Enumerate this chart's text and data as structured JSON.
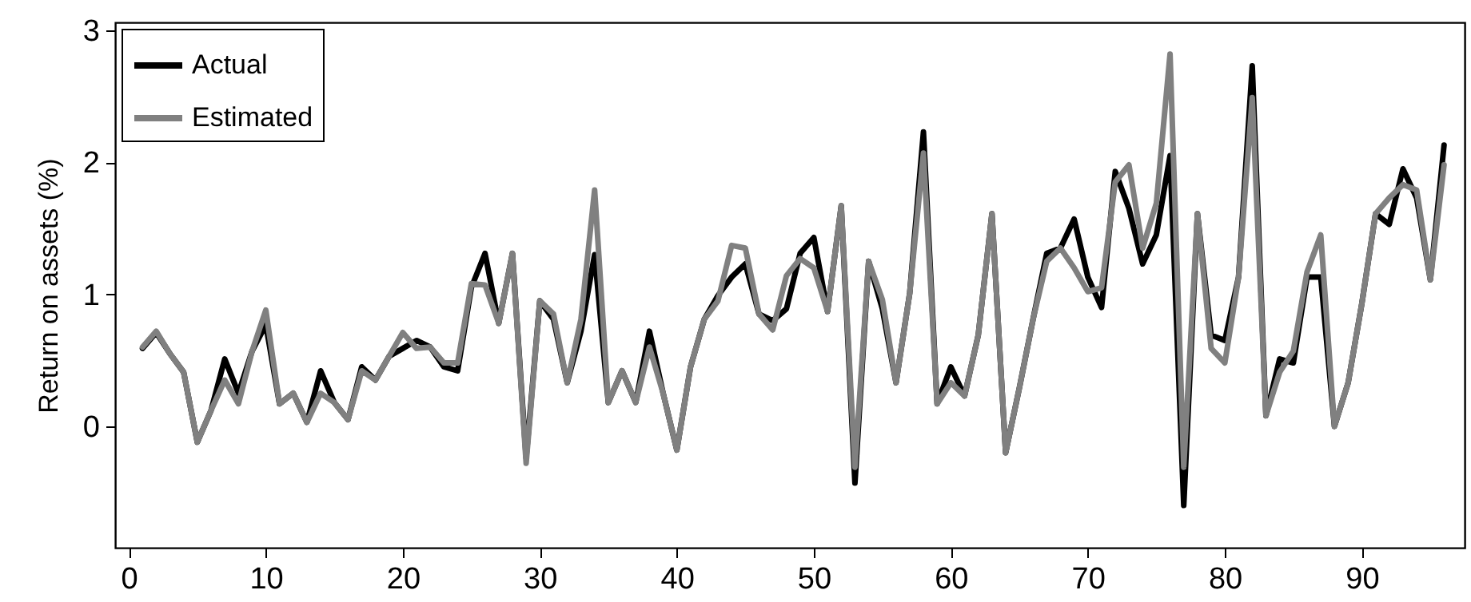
{
  "chart_data": {
    "type": "line",
    "ylabel": "Return on assets (%)",
    "x": [
      1,
      2,
      3,
      4,
      5,
      6,
      7,
      8,
      9,
      10,
      11,
      12,
      13,
      14,
      15,
      16,
      17,
      18,
      19,
      20,
      21,
      22,
      23,
      24,
      25,
      26,
      27,
      28,
      29,
      30,
      31,
      32,
      33,
      34,
      35,
      36,
      37,
      38,
      39,
      40,
      41,
      42,
      43,
      44,
      45,
      46,
      47,
      48,
      49,
      50,
      51,
      52,
      53,
      54,
      55,
      56,
      57,
      58,
      59,
      60,
      61,
      62,
      63,
      64,
      65,
      66,
      67,
      68,
      69,
      70,
      71,
      72,
      73,
      74,
      75,
      76,
      77,
      78,
      79,
      80,
      81,
      82,
      83,
      84,
      85,
      86,
      87,
      88,
      89,
      90,
      91,
      92,
      93,
      94,
      95,
      96
    ],
    "xlim": [
      -1,
      97.5
    ],
    "xticks": [
      0,
      10,
      20,
      30,
      40,
      50,
      60,
      70,
      80,
      90
    ],
    "ylim": [
      -0.92,
      3.06
    ],
    "yticks": [
      0,
      1,
      2,
      3
    ],
    "grid": false,
    "legend": "top left",
    "line_style": "solid",
    "series": [
      {
        "name": "Actual",
        "color": "#000000",
        "values": [
          0.59,
          0.71,
          0.55,
          0.41,
          -0.12,
          0.12,
          0.51,
          0.25,
          0.57,
          0.77,
          0.17,
          0.25,
          0.03,
          0.42,
          0.18,
          0.05,
          0.45,
          0.35,
          0.53,
          0.59,
          0.65,
          0.6,
          0.45,
          0.42,
          1.05,
          1.31,
          0.78,
          1.31,
          -0.24,
          0.95,
          0.81,
          0.33,
          0.72,
          1.3,
          0.18,
          0.42,
          0.18,
          0.72,
          0.25,
          -0.18,
          0.45,
          0.81,
          0.99,
          1.13,
          1.23,
          0.85,
          0.8,
          0.89,
          1.31,
          1.43,
          0.87,
          1.67,
          -0.43,
          1.25,
          0.89,
          0.33,
          1.01,
          2.23,
          0.17,
          0.45,
          0.23,
          0.69,
          1.61,
          -0.2,
          0.29,
          0.81,
          1.31,
          1.35,
          1.57,
          1.13,
          0.9,
          1.93,
          1.65,
          1.23,
          1.45,
          2.05,
          -0.6,
          1.61,
          0.69,
          0.65,
          1.13,
          2.73,
          0.08,
          0.51,
          0.48,
          1.13,
          1.13,
          0.0,
          0.33,
          0.93,
          1.61,
          1.53,
          1.95,
          1.73,
          1.11,
          2.13
        ]
      },
      {
        "name": "Estimated",
        "color": "#808080",
        "values": [
          0.6,
          0.72,
          0.55,
          0.41,
          -0.12,
          0.12,
          0.35,
          0.17,
          0.57,
          0.88,
          0.17,
          0.25,
          0.03,
          0.25,
          0.18,
          0.05,
          0.42,
          0.35,
          0.53,
          0.71,
          0.59,
          0.6,
          0.48,
          0.48,
          1.08,
          1.07,
          0.78,
          1.31,
          -0.28,
          0.95,
          0.85,
          0.33,
          0.81,
          1.79,
          0.18,
          0.42,
          0.18,
          0.6,
          0.25,
          -0.18,
          0.45,
          0.81,
          0.95,
          1.37,
          1.35,
          0.85,
          0.73,
          1.14,
          1.27,
          1.2,
          0.87,
          1.67,
          -0.31,
          1.25,
          0.96,
          0.33,
          1.01,
          2.07,
          0.17,
          0.33,
          0.23,
          0.69,
          1.61,
          -0.2,
          0.29,
          0.81,
          1.25,
          1.35,
          1.2,
          1.02,
          1.05,
          1.85,
          1.98,
          1.35,
          1.69,
          2.82,
          -0.31,
          1.61,
          0.59,
          0.48,
          1.13,
          2.49,
          0.08,
          0.41,
          0.57,
          1.17,
          1.45,
          0.0,
          0.33,
          0.93,
          1.61,
          1.73,
          1.83,
          1.79,
          1.11,
          1.98
        ]
      }
    ]
  }
}
